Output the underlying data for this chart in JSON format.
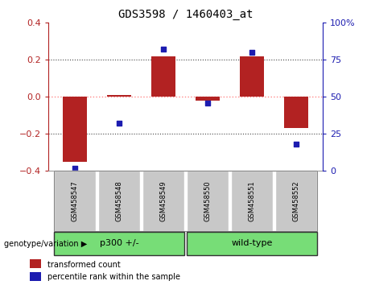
{
  "title": "GDS3598 / 1460403_at",
  "samples": [
    "GSM458547",
    "GSM458548",
    "GSM458549",
    "GSM458550",
    "GSM458551",
    "GSM458552"
  ],
  "red_values": [
    -0.35,
    0.01,
    0.22,
    -0.02,
    0.22,
    -0.17
  ],
  "blue_values": [
    2,
    32,
    82,
    46,
    80,
    18
  ],
  "ylim_left": [
    -0.4,
    0.4
  ],
  "ylim_right": [
    0,
    100
  ],
  "yticks_left": [
    -0.4,
    -0.2,
    0,
    0.2,
    0.4
  ],
  "yticks_right": [
    0,
    25,
    50,
    75,
    100
  ],
  "ytick_labels_right": [
    "0",
    "25",
    "50",
    "75",
    "100%"
  ],
  "groups": [
    {
      "label": "p300 +/-",
      "start": 0,
      "end": 3,
      "color": "#77DD77"
    },
    {
      "label": "wild-type",
      "start": 3,
      "end": 6,
      "color": "#77DD77"
    }
  ],
  "group_label": "genotype/variation",
  "red_color": "#B22222",
  "blue_color": "#1C1CB0",
  "bar_width": 0.55,
  "zero_line_color": "#FF8888",
  "dotted_line_color": "#444444",
  "bg_color": "#FFFFFF",
  "legend_red_label": "transformed count",
  "legend_blue_label": "percentile rank within the sample",
  "sample_bg_color": "#C8C8C8"
}
